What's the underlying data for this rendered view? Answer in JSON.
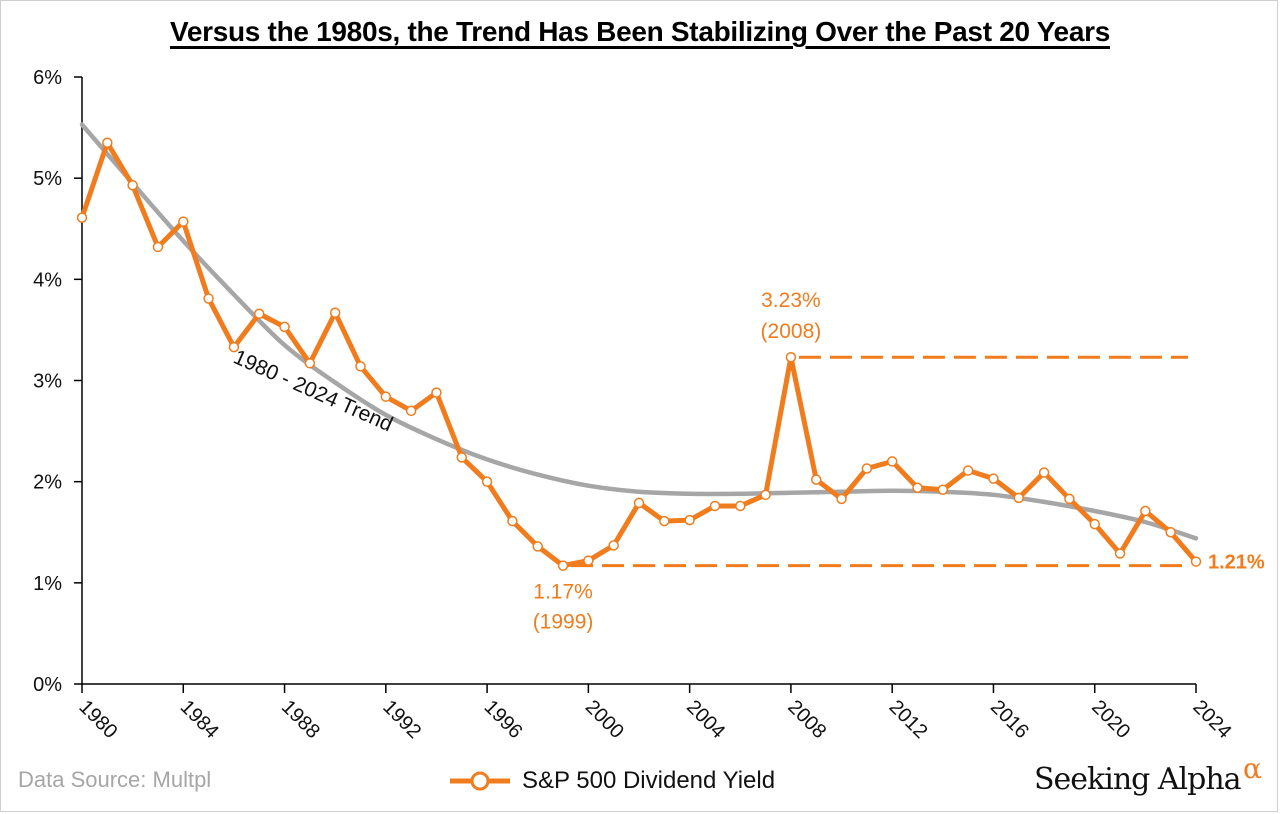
{
  "chart_data": {
    "type": "line",
    "title": "Versus the 1980s, the Trend Has Been Stabilizing Over the Past 20 Years",
    "x": [
      1980,
      1981,
      1982,
      1983,
      1984,
      1985,
      1986,
      1987,
      1988,
      1989,
      1990,
      1991,
      1992,
      1993,
      1994,
      1995,
      1996,
      1997,
      1998,
      1999,
      2000,
      2001,
      2002,
      2003,
      2004,
      2005,
      2006,
      2007,
      2008,
      2009,
      2010,
      2011,
      2012,
      2013,
      2014,
      2015,
      2016,
      2017,
      2018,
      2019,
      2020,
      2021,
      2022,
      2023,
      2024
    ],
    "series": [
      {
        "name": "S&P 500 Dividend Yield",
        "color": "#f07c1e",
        "values": [
          4.61,
          5.35,
          4.93,
          4.32,
          4.57,
          3.81,
          3.33,
          3.66,
          3.53,
          3.17,
          3.67,
          3.14,
          2.84,
          2.7,
          2.88,
          2.24,
          2.0,
          1.61,
          1.36,
          1.17,
          1.22,
          1.37,
          1.79,
          1.61,
          1.62,
          1.76,
          1.76,
          1.87,
          3.23,
          2.02,
          1.83,
          2.13,
          2.2,
          1.94,
          1.92,
          2.11,
          2.03,
          1.84,
          2.09,
          1.83,
          1.58,
          1.29,
          1.71,
          1.5,
          1.21
        ]
      },
      {
        "name": "1980 - 2024 Trend",
        "color": "#a6a6a6",
        "x": [
          1980,
          1982,
          1984,
          1986,
          1988,
          1990,
          1992,
          1994,
          1996,
          1998,
          2000,
          2002,
          2004,
          2006,
          2008,
          2010,
          2012,
          2014,
          2016,
          2018,
          2020,
          2022,
          2024
        ],
        "values": [
          5.53,
          4.95,
          4.38,
          3.85,
          3.35,
          2.98,
          2.66,
          2.42,
          2.22,
          2.07,
          1.96,
          1.9,
          1.88,
          1.88,
          1.89,
          1.9,
          1.91,
          1.9,
          1.87,
          1.8,
          1.71,
          1.6,
          1.44
        ]
      }
    ],
    "ylim": [
      0,
      6
    ],
    "xlim": [
      1980,
      2024
    ],
    "yticks": [
      "0%",
      "1%",
      "2%",
      "3%",
      "4%",
      "5%",
      "6%"
    ],
    "xticks": [
      "1980",
      "1984",
      "1988",
      "1992",
      "1996",
      "2000",
      "2004",
      "2008",
      "2012",
      "2016",
      "2020",
      "2024"
    ],
    "grid": false,
    "legend_position": "bottom-center",
    "annotations": {
      "trend_label": "1980  -  2024  Trend",
      "max_value": "3.23%",
      "max_year": "(2008)",
      "min_value": "1.17%",
      "min_year": "(1999)",
      "last_value": "1.21%"
    },
    "reference_lines": [
      {
        "value": 3.23,
        "from": 2008,
        "to": 2024
      },
      {
        "value": 1.17,
        "from": 1999,
        "to": 2024
      }
    ]
  },
  "legend_label": "S&P 500 Dividend Yield",
  "source": "Data Source: Multpl",
  "brand": {
    "name": "Seeking Alpha",
    "symbol": "α"
  },
  "colors": {
    "accent": "#f07c1e",
    "trend": "#a6a6a6",
    "axis": "#000000"
  }
}
